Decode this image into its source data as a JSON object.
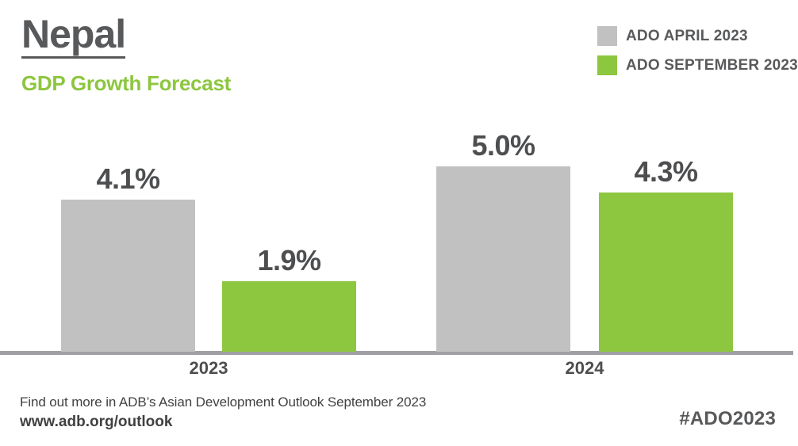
{
  "header": {
    "title": "Nepal",
    "subtitle": "GDP Growth Forecast"
  },
  "legend": [
    {
      "label": "ADO APRIL 2023",
      "color": "#C1C1C1"
    },
    {
      "label": "ADO SEPTEMBER 2023",
      "color": "#8DC63F"
    }
  ],
  "chart_data": {
    "type": "bar",
    "title": "Nepal GDP Growth Forecast",
    "categories": [
      "2023",
      "2024"
    ],
    "series": [
      {
        "name": "ADO APRIL 2023",
        "color": "#C1C1C1",
        "values": [
          4.1,
          5.0
        ],
        "labels": [
          "4.1%",
          "5.0%"
        ]
      },
      {
        "name": "ADO SEPTEMBER 2023",
        "color": "#8DC63F",
        "values": [
          1.9,
          4.3
        ],
        "labels": [
          "1.9%",
          "4.3%"
        ]
      }
    ],
    "unit": "%",
    "xlabel": "",
    "ylabel": "",
    "ylim": [
      0,
      5.5
    ],
    "grid": false,
    "legend_position": "top-right",
    "value_labels_shown": true
  },
  "footer": {
    "note": "Find out more in ADB’s Asian Development Outlook September 2023",
    "url": "www.adb.org/outlook",
    "hashtag": "#ADO2023"
  },
  "colors": {
    "dark_gray_text": "#58595B",
    "bar_gray": "#C1C1C1",
    "bar_green": "#8DC63F",
    "subtitle_green": "#8DC63F",
    "axis_line": "#9EA0A3",
    "background": "#FFFFFF"
  }
}
